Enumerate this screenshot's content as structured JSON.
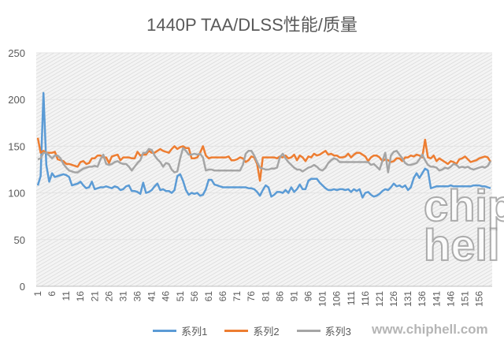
{
  "chart_data": {
    "type": "line",
    "title": "1440P TAA/DLSS性能/质量",
    "xlabel": "",
    "ylabel": "",
    "ylim": [
      0,
      250
    ],
    "yticks": [
      0,
      50,
      100,
      150,
      200,
      250
    ],
    "x_start": 1,
    "x_tick_step": 5,
    "grid": true,
    "legend": "bottom",
    "series": [
      {
        "name": "系列1",
        "color": "#5B9BD5",
        "values": [
          108,
          118,
          207,
          130,
          112,
          121,
          117,
          118,
          119,
          120,
          119,
          117,
          108,
          109,
          110,
          112,
          108,
          105,
          106,
          112,
          104,
          105,
          106,
          106,
          107,
          106,
          105,
          107,
          106,
          103,
          104,
          107,
          108,
          102,
          102,
          101,
          99,
          111,
          100,
          101,
          103,
          107,
          110,
          103,
          104,
          102,
          102,
          100,
          103,
          118,
          120,
          113,
          103,
          98,
          100,
          99,
          100,
          97,
          98,
          104,
          114,
          114,
          109,
          108,
          107,
          106,
          106,
          106,
          106,
          106,
          106,
          106,
          106,
          106,
          105,
          105,
          104,
          101,
          97,
          103,
          108,
          106,
          96,
          98,
          101,
          101,
          100,
          103,
          100,
          106,
          101,
          104,
          109,
          104,
          104,
          113,
          115,
          115,
          115,
          111,
          108,
          105,
          103,
          103,
          104,
          103,
          104,
          104,
          103,
          104,
          101,
          104,
          102,
          104,
          95,
          100,
          101,
          98,
          96,
          97,
          99,
          102,
          104,
          103,
          106,
          110,
          107,
          108,
          106,
          108,
          103,
          106,
          116,
          121,
          116,
          121,
          126,
          124,
          105,
          106,
          107,
          107,
          107,
          107,
          107,
          108,
          107,
          107,
          107,
          107,
          107,
          107,
          107,
          108,
          108,
          108,
          107,
          107,
          106,
          105
        ]
      },
      {
        "name": "系列2",
        "color": "#ED7D31",
        "values": [
          159,
          143,
          145,
          143,
          143,
          143,
          144,
          136,
          135,
          134,
          131,
          131,
          130,
          129,
          128,
          133,
          134,
          131,
          132,
          137,
          137,
          140,
          140,
          138,
          138,
          132,
          139,
          140,
          141,
          135,
          138,
          138,
          138,
          137,
          137,
          144,
          140,
          141,
          141,
          145,
          143,
          143,
          145,
          147,
          145,
          144,
          143,
          147,
          150,
          147,
          149,
          150,
          148,
          148,
          137,
          137,
          138,
          143,
          150,
          140,
          137,
          138,
          138,
          138,
          138,
          138,
          138,
          139,
          135,
          135,
          136,
          138,
          137,
          133,
          135,
          139,
          138,
          131,
          113,
          138,
          138,
          138,
          138,
          138,
          137,
          139,
          138,
          140,
          137,
          138,
          141,
          135,
          140,
          138,
          134,
          139,
          138,
          142,
          140,
          141,
          143,
          145,
          141,
          142,
          140,
          140,
          138,
          138,
          139,
          142,
          138,
          141,
          143,
          143,
          141,
          139,
          134,
          138,
          140,
          140,
          138,
          134,
          136,
          135,
          133,
          134,
          137,
          137,
          134,
          138,
          138,
          140,
          139,
          141,
          140,
          138,
          157,
          138,
          137,
          140,
          134,
          137,
          135,
          133,
          131,
          134,
          133,
          131,
          136,
          137,
          139,
          136,
          133,
          134,
          135,
          137,
          138,
          139,
          138,
          133
        ]
      },
      {
        "name": "系列3",
        "color": "#A5A5A5",
        "values": [
          136,
          137,
          143,
          143,
          140,
          137,
          140,
          140,
          137,
          131,
          127,
          124,
          123,
          122,
          122,
          124,
          126,
          127,
          128,
          128,
          129,
          128,
          136,
          141,
          131,
          130,
          131,
          133,
          134,
          132,
          131,
          131,
          128,
          124,
          128,
          132,
          135,
          143,
          143,
          147,
          146,
          140,
          136,
          133,
          128,
          132,
          131,
          125,
          122,
          123,
          137,
          148,
          145,
          141,
          141,
          142,
          141,
          142,
          138,
          124,
          125,
          125,
          124,
          124,
          124,
          124,
          124,
          124,
          124,
          124,
          124,
          124,
          130,
          142,
          145,
          145,
          140,
          133,
          127,
          126,
          125,
          125,
          126,
          126,
          127,
          138,
          142,
          137,
          133,
          130,
          127,
          125,
          125,
          123,
          125,
          127,
          128,
          130,
          128,
          125,
          124,
          127,
          132,
          135,
          137,
          136,
          133,
          133,
          133,
          133,
          133,
          133,
          133,
          133,
          133,
          133,
          133,
          130,
          131,
          128,
          125,
          134,
          143,
          122,
          140,
          144,
          145,
          141,
          137,
          132,
          130,
          130,
          131,
          132,
          136,
          141,
          135,
          130,
          128,
          128,
          127,
          124,
          125,
          127,
          126,
          128,
          131,
          130,
          127,
          128,
          127,
          128,
          126,
          125,
          126,
          127,
          128,
          127,
          129,
          134
        ]
      }
    ]
  },
  "watermark": {
    "url": "www.chiphell.com",
    "logo": "chip hell"
  }
}
